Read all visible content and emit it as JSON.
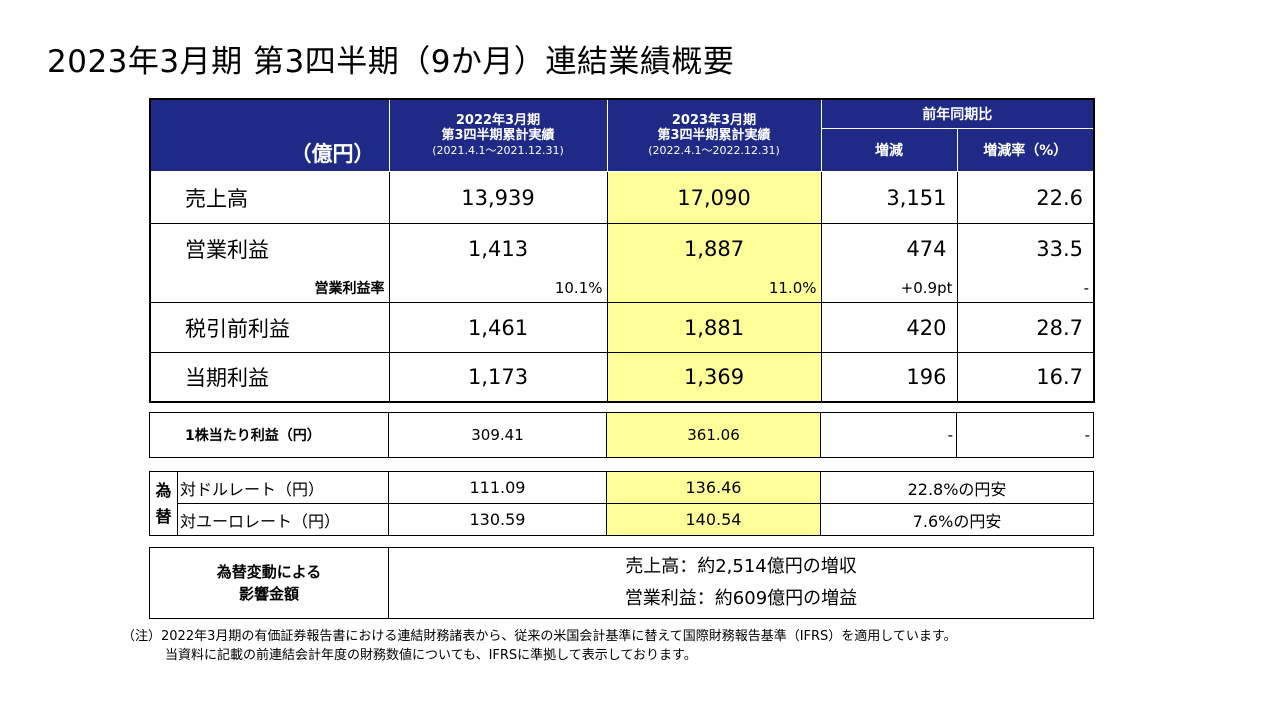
{
  "title": "2023年3月期 第3四半期（9か月）連結業績概要",
  "header": {
    "unit": "（億円）",
    "prev_period": {
      "line1": "2022年3月期",
      "line2": "第3四半期累計実績",
      "line3": "(2021.4.1～2021.12.31)"
    },
    "curr_period": {
      "line1": "2023年3月期",
      "line2": "第3四半期累計実績",
      "line3": "(2022.4.1～2022.12.31)"
    },
    "yoy": "前年同期比",
    "change": "増減",
    "change_rate": "増減率（%）"
  },
  "rows": [
    {
      "label": "売上高",
      "prev": "13,939",
      "curr": "17,090",
      "change": "3,151",
      "rate": "22.6"
    },
    {
      "label": "営業利益",
      "prev": "1,413",
      "curr": "1,887",
      "change": "474",
      "rate": "33.5"
    },
    {
      "label": "税引前利益",
      "prev": "1,461",
      "curr": "1,881",
      "change": "420",
      "rate": "28.7"
    },
    {
      "label": "当期利益",
      "prev": "1,173",
      "curr": "1,369",
      "change": "196",
      "rate": "16.7"
    }
  ],
  "margin": {
    "label": "営業利益率",
    "prev": "10.1%",
    "curr": "11.0%",
    "change": "+0.9pt",
    "rate": "-"
  },
  "eps": {
    "label": "1株当たり利益（円）",
    "prev": "309.41",
    "curr": "361.06",
    "change": "-",
    "rate": "-"
  },
  "fx": {
    "category": "為替",
    "rows": [
      {
        "label": "対ドルレート（円）",
        "prev": "111.09",
        "curr": "136.46",
        "note": "22.8%の円安"
      },
      {
        "label": "対ユーロレート（円）",
        "prev": "130.59",
        "curr": "140.54",
        "note": "7.6%の円安"
      }
    ]
  },
  "impact": {
    "label_line1": "為替変動による",
    "label_line2": "影響金額",
    "sales": "売上高：約2,514億円の増収",
    "op": "営業利益：約609億円の増益"
  },
  "notes": [
    "（注）2022年3月期の有価証券報告書における連結財務諸表から、従来の米国会計基準に替えて国際財務報告基準（IFRS）を適用しています。",
    "当資料に記載の前連結会計年度の財務数値についても、IFRSに準拠して表示しております。"
  ],
  "colors": {
    "header_bg": "#1f2a86",
    "highlight": "#ffff99"
  }
}
